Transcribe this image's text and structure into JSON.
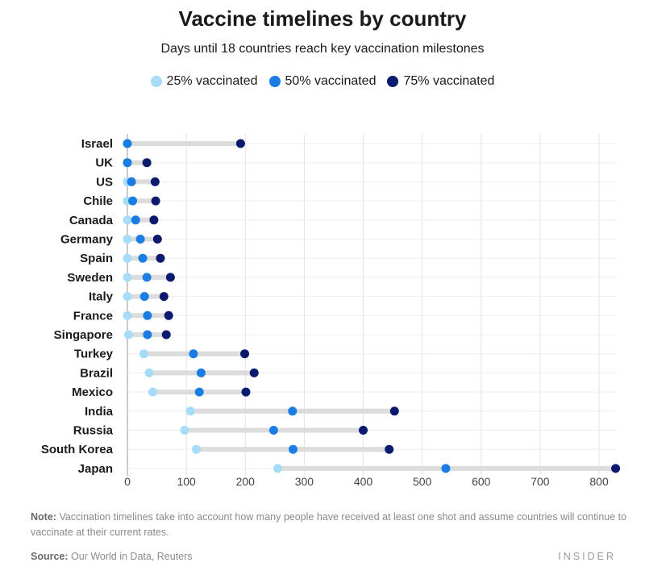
{
  "chart_data": {
    "type": "dumbbell",
    "title": "Vaccine timelines by country",
    "subtitle": "Days until 18 countries reach key vaccination milestones",
    "series": [
      {
        "key": "p25",
        "name": "25% vaccinated",
        "color": "#a6dcf7"
      },
      {
        "key": "p50",
        "name": "50% vaccinated",
        "color": "#1a7de3"
      },
      {
        "key": "p75",
        "name": "75% vaccinated",
        "color": "#0b1a6e"
      }
    ],
    "categories": [
      "Israel",
      "UK",
      "US",
      "Chile",
      "Canada",
      "Germany",
      "Spain",
      "Sweden",
      "Italy",
      "France",
      "Singapore",
      "Turkey",
      "Brazil",
      "Mexico",
      "India",
      "Russia",
      "South Korea",
      "Japan"
    ],
    "values": {
      "p25": [
        0,
        0,
        0,
        0,
        0,
        0,
        0,
        0,
        0,
        0,
        2,
        28,
        37,
        43,
        107,
        97,
        117,
        255
      ],
      "p50": [
        0,
        0,
        7,
        9,
        14,
        22,
        26,
        33,
        29,
        34,
        34,
        112,
        125,
        122,
        280,
        248,
        281,
        540
      ],
      "p75": [
        192,
        33,
        47,
        48,
        45,
        51,
        56,
        73,
        62,
        70,
        66,
        199,
        215,
        201,
        453,
        400,
        444,
        828
      ]
    },
    "xlim": [
      0,
      830
    ],
    "xticks": [
      "0",
      "100",
      "200",
      "300",
      "400",
      "500",
      "600",
      "700",
      "800"
    ],
    "xtick_values": [
      0,
      100,
      200,
      300,
      400,
      500,
      600,
      700,
      800
    ],
    "grid": true,
    "legend": "top-center"
  },
  "note": {
    "label": "Note:",
    "text": "Vaccination timelines take into account how many people have received at least one shot and assume countries will continue to vaccinate at their current rates."
  },
  "source": {
    "label": "Source:",
    "text": "Our World in Data, Reuters"
  },
  "brand": "INSIDER"
}
